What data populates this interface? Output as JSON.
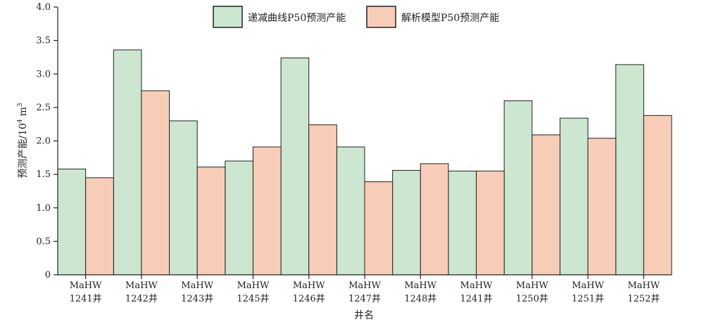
{
  "chart_data": {
    "type": "bar",
    "categories": [
      [
        "MaHW",
        "1241井"
      ],
      [
        "MaHW",
        "1242井"
      ],
      [
        "MaHW",
        "1243井"
      ],
      [
        "MaHW",
        "1245井"
      ],
      [
        "MaHW",
        "1246井"
      ],
      [
        "MaHW",
        "1247井"
      ],
      [
        "MaHW",
        "1248井"
      ],
      [
        "MaHW",
        "1241井"
      ],
      [
        "MaHW",
        "1250井"
      ],
      [
        "MaHW",
        "1251井"
      ],
      [
        "MaHW",
        "1252井"
      ]
    ],
    "series": [
      {
        "name": "递减曲线P50预测产能",
        "color": "#cce6d0",
        "values": [
          1.58,
          3.36,
          2.3,
          1.7,
          3.24,
          1.91,
          1.56,
          1.55,
          2.6,
          2.34,
          3.14
        ]
      },
      {
        "name": "解析模型P50预测产能",
        "color": "#f8cdb8",
        "values": [
          1.45,
          2.75,
          1.61,
          1.91,
          2.24,
          1.39,
          1.66,
          1.55,
          2.09,
          2.04,
          2.38
        ]
      }
    ],
    "xlabel": "井名",
    "ylabel": "预测产能/10",
    "ylabel_sup": "4",
    "ylabel_unit": "m",
    "ylabel_unit_sup": "3",
    "ylim": [
      0,
      4.0
    ],
    "yticks": [
      "0",
      "0.5",
      "1.0",
      "1.5",
      "2.0",
      "2.5",
      "3.0",
      "3.5",
      "4.0"
    ],
    "grid": false,
    "legend_position": "top-center"
  }
}
